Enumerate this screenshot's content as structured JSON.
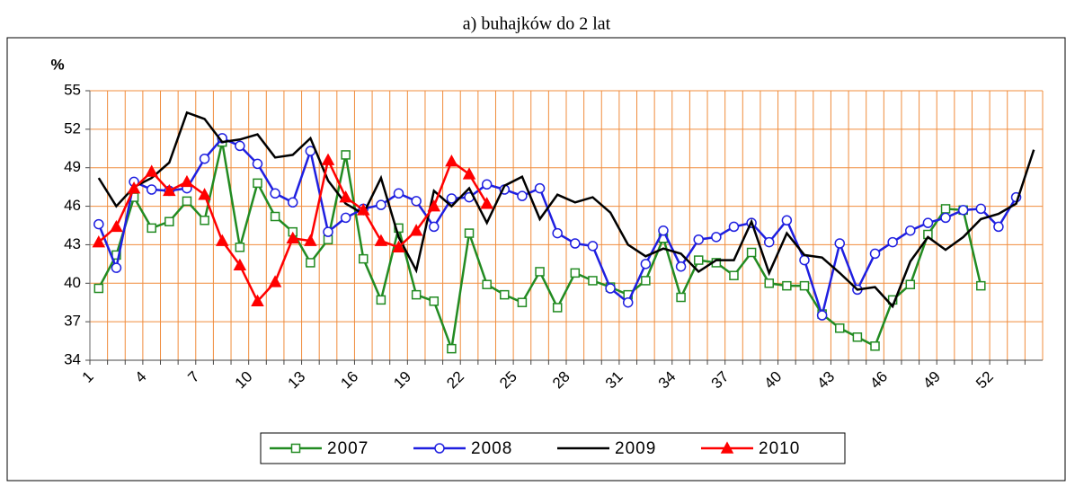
{
  "chart_data": {
    "type": "line",
    "title": "a) buhajków do 2 lat",
    "ylabel": "%",
    "categories": [
      1,
      null,
      null,
      4,
      null,
      null,
      7,
      null,
      null,
      10,
      null,
      null,
      13,
      null,
      null,
      16,
      null,
      null,
      19,
      null,
      null,
      22,
      null,
      null,
      25,
      null,
      null,
      28,
      null,
      null,
      31,
      null,
      null,
      34,
      null,
      null,
      37,
      null,
      null,
      40,
      null,
      null,
      43,
      null,
      null,
      46,
      null,
      null,
      49,
      null,
      null,
      52,
      null,
      null
    ],
    "ylim": [
      34,
      55
    ],
    "yticks": [
      34,
      37,
      40,
      43,
      46,
      49,
      52,
      55
    ],
    "grid": true,
    "grid_color": "#f08c3c",
    "legend": "bottom",
    "series": [
      {
        "name": "2007",
        "color": "#228b22",
        "marker": "square",
        "values": [
          39.6,
          42.2,
          46.7,
          44.3,
          44.8,
          46.4,
          44.9,
          51.0,
          42.8,
          47.8,
          45.2,
          44.0,
          41.6,
          43.4,
          50.0,
          41.9,
          38.7,
          44.3,
          39.1,
          38.6,
          34.9,
          43.9,
          39.9,
          39.1,
          38.5,
          40.9,
          38.1,
          40.8,
          40.2,
          39.7,
          39.1,
          40.2,
          43.5,
          38.9,
          41.8,
          41.6,
          40.6,
          42.4,
          40.0,
          39.8,
          39.8,
          37.6,
          36.5,
          35.8,
          35.1,
          38.7,
          39.9,
          43.8,
          45.8,
          45.7,
          39.8,
          null,
          null,
          null
        ]
      },
      {
        "name": "2008",
        "color": "#1f1fe0",
        "marker": "circle",
        "values": [
          44.6,
          41.2,
          47.9,
          47.3,
          47.2,
          47.4,
          49.7,
          51.3,
          50.7,
          49.3,
          47.0,
          46.3,
          50.3,
          44.0,
          45.1,
          45.8,
          46.1,
          47.0,
          46.4,
          44.4,
          46.6,
          46.7,
          47.7,
          47.3,
          46.8,
          47.4,
          43.9,
          43.1,
          42.9,
          39.6,
          38.5,
          41.5,
          44.1,
          41.3,
          43.4,
          43.6,
          44.4,
          44.7,
          43.2,
          44.9,
          41.8,
          37.5,
          43.1,
          39.5,
          42.3,
          43.2,
          44.1,
          44.7,
          45.1,
          45.7,
          45.8,
          44.4,
          46.7,
          null
        ]
      },
      {
        "name": "2009",
        "color": "#000000",
        "marker": "none",
        "values": [
          48.2,
          46.0,
          47.5,
          48.2,
          49.4,
          53.3,
          52.8,
          51.0,
          51.2,
          51.6,
          49.8,
          50.0,
          51.3,
          48.0,
          46.2,
          45.4,
          48.2,
          43.6,
          41.0,
          47.2,
          46.0,
          47.4,
          44.7,
          47.6,
          48.3,
          45.0,
          46.9,
          46.3,
          46.7,
          45.5,
          43.0,
          42.1,
          42.7,
          42.3,
          40.9,
          41.8,
          41.8,
          44.8,
          40.8,
          43.9,
          42.2,
          42.0,
          40.8,
          39.5,
          39.7,
          38.2,
          41.7,
          43.6,
          42.6,
          43.6,
          45.0,
          45.4,
          46.2,
          50.4
        ]
      },
      {
        "name": "2010",
        "color": "#ff0000",
        "marker": "triangle",
        "values": [
          43.2,
          44.4,
          47.4,
          48.7,
          47.2,
          47.9,
          46.9,
          43.3,
          41.4,
          38.6,
          40.1,
          43.5,
          43.3,
          49.6,
          46.7,
          45.7,
          43.3,
          42.8,
          44.1,
          46.0,
          49.5,
          48.5,
          46.2,
          null,
          null,
          null,
          null,
          null,
          null,
          null,
          null,
          null,
          null,
          null,
          null,
          null,
          null,
          null,
          null,
          null,
          null,
          null,
          null,
          null,
          null,
          null,
          null,
          null,
          null,
          null,
          null,
          null,
          null,
          null
        ]
      }
    ]
  }
}
